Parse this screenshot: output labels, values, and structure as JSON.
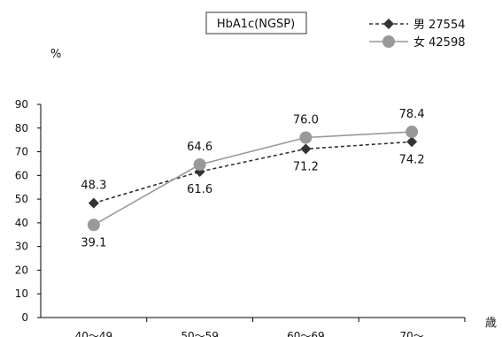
{
  "chart_data": {
    "type": "line",
    "title": "HbA1c(NGSP)",
    "ylabel": "%",
    "xlabel": "歳",
    "categories": [
      "40～49",
      "50～59",
      "60～69",
      "70～"
    ],
    "ylim": [
      0,
      90
    ],
    "yticks": [
      "0",
      "10",
      "20",
      "30",
      "40",
      "50",
      "60",
      "70",
      "80",
      "90"
    ],
    "grid": false,
    "legend_position": "top-right",
    "series": [
      {
        "name": "男 27554",
        "values": [
          48.3,
          61.6,
          71.2,
          74.2
        ],
        "labels": [
          "48.3",
          "61.6",
          "71.2",
          "74.2"
        ],
        "color": "#333333",
        "line_style": "dashed",
        "marker": "diamond"
      },
      {
        "name": "女 42598",
        "values": [
          39.1,
          64.6,
          76.0,
          78.4
        ],
        "labels": [
          "39.1",
          "64.6",
          "76.0",
          "78.4"
        ],
        "color": "#999999",
        "line_style": "solid",
        "marker": "circle"
      }
    ]
  }
}
